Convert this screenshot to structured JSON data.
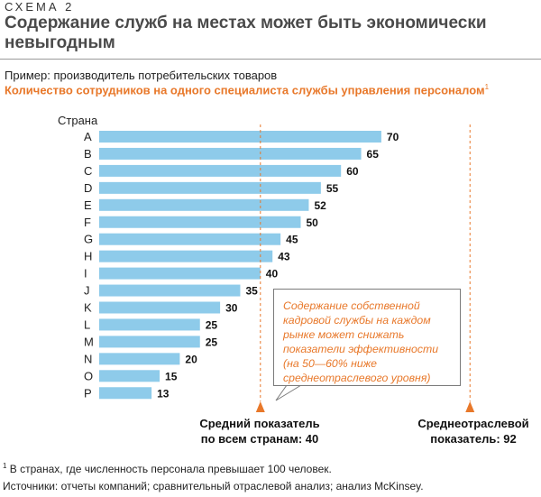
{
  "header": {
    "kicker": "СХЕМА 2",
    "title": "Содержание служб на местах может быть экономически невыгодным",
    "example": "Пример: производитель потребительских товаров",
    "subtitle": "Количество сотрудников на одного специалиста службы управления персоналом",
    "subtitle_note": "1"
  },
  "chart_data": {
    "type": "bar",
    "orientation": "horizontal",
    "category_header": "Страна",
    "categories": [
      "A",
      "B",
      "C",
      "D",
      "E",
      "F",
      "G",
      "H",
      "I",
      "J",
      "K",
      "L",
      "M",
      "N",
      "O",
      "P"
    ],
    "values": [
      70,
      65,
      60,
      55,
      52,
      50,
      45,
      43,
      40,
      35,
      30,
      25,
      25,
      20,
      15,
      13
    ],
    "value_labels": [
      "70",
      "65",
      "60",
      "55",
      "52",
      "50",
      "45",
      "43",
      "40",
      "35",
      "30",
      "25",
      "25",
      "20",
      "15",
      "13"
    ],
    "bar_color": "#8ecbea",
    "reference_lines": [
      {
        "value": 40,
        "label": "Средний показатель по всем странам: 40",
        "color": "#e8782a",
        "style": "dashed"
      },
      {
        "value": 92,
        "label": "Среднеотраслевой показатель: 92",
        "color": "#e8782a",
        "style": "dashed"
      }
    ],
    "xlim": [
      0,
      92
    ],
    "grid": false
  },
  "reference_labels": {
    "average": "Средний показатель по всем странам: 40",
    "industry": "Среднеотраслевой показатель: 92"
  },
  "callout": {
    "text": "Содержание собственной кадровой службы на каждом рынке может снижать показатели эффективности (на 50—60% ниже среднеотраслевого уровня)"
  },
  "footer": {
    "footnote_mark": "1",
    "footnote": " В странах, где численность персонала превышает 100 человек.",
    "sources": "Источники: отчеты компаний; сравнительный отраслевой анализ; анализ McKinsey."
  },
  "colors": {
    "accent": "#e8782a",
    "bar": "#8ecbea",
    "title": "#4a4a4a"
  }
}
